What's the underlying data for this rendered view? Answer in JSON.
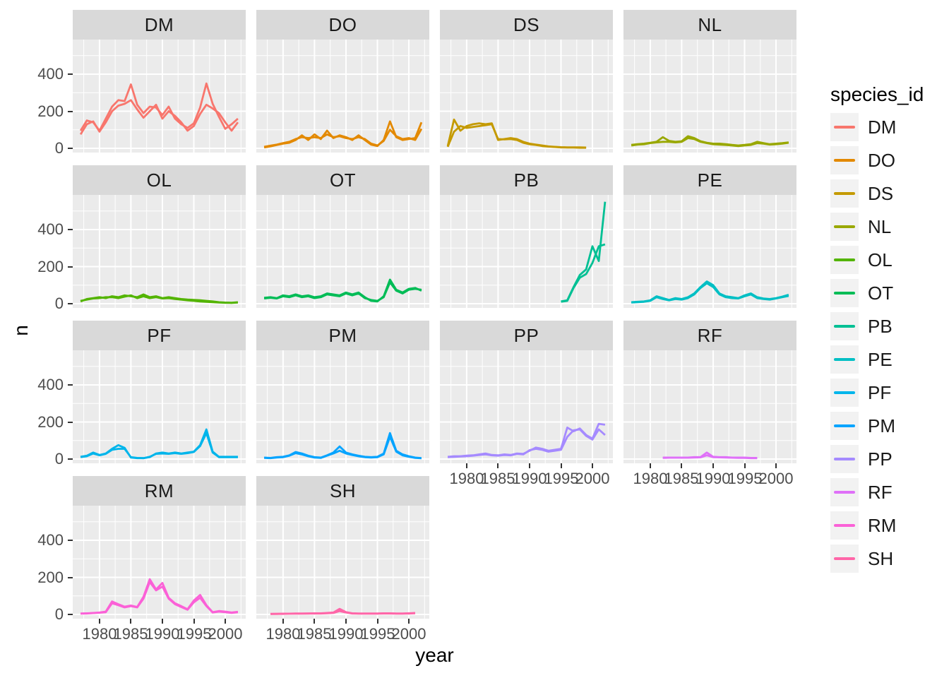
{
  "chart_data": {
    "type": "line",
    "title": "",
    "xlabel": "year",
    "ylabel": "n",
    "legend_title": "species_id",
    "legend_position": "right",
    "grid": true,
    "facet_layout": {
      "ncol": 4,
      "nrow": 4
    },
    "x_domain": [
      1975.75,
      2003.25
    ],
    "y_domain": [
      -23,
      587
    ],
    "x_ticks": {
      "values": [
        1980,
        1985,
        1990,
        1995,
        2000
      ],
      "labels": [
        "1980",
        "1985",
        "1990",
        "1995",
        "2000"
      ]
    },
    "x_minor": [
      1977.5,
      1982.5,
      1987.5,
      1992.5,
      1997.5,
      2002.5
    ],
    "y_ticks": {
      "values": [
        0,
        200,
        400
      ],
      "labels": [
        "0",
        "200",
        "400"
      ]
    },
    "y_minor": [
      100,
      300,
      500
    ],
    "theme": {
      "background": "#FFFFFF",
      "panel_bg": "#EBEBEB",
      "strip_bg": "#D9D9D9",
      "grid_color": "#FFFFFF",
      "axis_text": "#4D4D4D",
      "tick_color": "#333333",
      "strip_text": "#1A1A1A",
      "legend_key_bg": "#F2F2F2"
    },
    "facets": [
      {
        "label": "DM",
        "color": "#F8766D",
        "series": [
          {
            "name": "line1",
            "start_year": 1977,
            "values": [
              95,
              150,
              140,
              95,
              160,
              225,
              260,
              255,
              345,
              235,
              190,
              225,
              220,
              180,
              225,
              160,
              130,
              110,
              135,
              220,
              350,
              240,
              170,
              105,
              130,
              160
            ]
          },
          {
            "name": "line2",
            "start_year": 1977,
            "values": [
              75,
              130,
              145,
              90,
              140,
              200,
              230,
              240,
              260,
              210,
              165,
              200,
              235,
              160,
              200,
              175,
              140,
              95,
              120,
              185,
              235,
              215,
              190,
              140,
              95,
              140
            ]
          }
        ]
      },
      {
        "label": "DO",
        "color": "#E38900",
        "series": [
          {
            "name": "line1",
            "start_year": 1977,
            "values": [
              5,
              10,
              18,
              25,
              30,
              45,
              70,
              45,
              75,
              50,
              95,
              55,
              70,
              60,
              45,
              70,
              45,
              20,
              12,
              45,
              145,
              60,
              45,
              50,
              55,
              140
            ]
          },
          {
            "name": "line2",
            "start_year": 1977,
            "values": [
              8,
              14,
              20,
              28,
              35,
              50,
              60,
              55,
              60,
              55,
              75,
              60,
              65,
              55,
              50,
              60,
              50,
              25,
              15,
              40,
              100,
              65,
              50,
              55,
              45,
              105
            ]
          }
        ]
      },
      {
        "label": "DS",
        "color": "#C49A00",
        "series": [
          {
            "name": "line1",
            "start_year": 1977,
            "values": [
              12,
              155,
              95,
              120,
              130,
              135,
              130,
              135,
              45,
              50,
              55,
              50,
              35,
              25,
              20,
              15,
              10,
              8,
              6,
              5,
              5,
              5,
              4
            ]
          },
          {
            "name": "line2",
            "start_year": 1977,
            "values": [
              8,
              90,
              120,
              110,
              115,
              120,
              125,
              130,
              50,
              48,
              50,
              45,
              30,
              22,
              18,
              12,
              9,
              7,
              5,
              4,
              4,
              3,
              3
            ]
          }
        ]
      },
      {
        "label": "NL",
        "color": "#99A800",
        "series": [
          {
            "name": "line1",
            "start_year": 1977,
            "values": [
              18,
              22,
              25,
              30,
              35,
              60,
              40,
              35,
              38,
              65,
              55,
              38,
              30,
              25,
              25,
              22,
              18,
              15,
              18,
              22,
              35,
              28,
              22,
              25,
              28,
              32
            ]
          },
          {
            "name": "line2",
            "start_year": 1977,
            "values": [
              15,
              20,
              22,
              28,
              32,
              35,
              35,
              32,
              35,
              55,
              50,
              35,
              28,
              22,
              20,
              18,
              15,
              12,
              15,
              18,
              28,
              25,
              20,
              22,
              25,
              30
            ]
          }
        ]
      },
      {
        "label": "OL",
        "color": "#53B400",
        "series": [
          {
            "name": "line1",
            "start_year": 1977,
            "values": [
              12,
              25,
              30,
              35,
              30,
              40,
              35,
              45,
              40,
              35,
              50,
              35,
              40,
              30,
              35,
              30,
              25,
              22,
              20,
              18,
              15,
              12,
              8,
              6,
              5,
              8
            ]
          },
          {
            "name": "line2",
            "start_year": 1977,
            "values": [
              15,
              22,
              28,
              30,
              35,
              35,
              30,
              38,
              45,
              30,
              40,
              30,
              35,
              28,
              30,
              25,
              22,
              18,
              15,
              12,
              10,
              8,
              6,
              5,
              4,
              6
            ]
          }
        ]
      },
      {
        "label": "OT",
        "color": "#00BC56",
        "series": [
          {
            "name": "line1",
            "start_year": 1977,
            "values": [
              32,
              35,
              30,
              45,
              40,
              50,
              40,
              45,
              35,
              40,
              55,
              50,
              45,
              60,
              50,
              60,
              35,
              15,
              12,
              40,
              130,
              75,
              60,
              80,
              85,
              70
            ]
          },
          {
            "name": "line2",
            "start_year": 1977,
            "values": [
              28,
              32,
              28,
              40,
              35,
              45,
              35,
              40,
              30,
              35,
              50,
              45,
              40,
              55,
              45,
              55,
              30,
              20,
              15,
              35,
              115,
              70,
              55,
              75,
              80,
              75
            ]
          }
        ]
      },
      {
        "label": "PB",
        "color": "#00C094",
        "series": [
          {
            "name": "line1",
            "start_year": 1995,
            "values": [
              12,
              18,
              90,
              155,
              185,
              310,
              230,
              550
            ]
          },
          {
            "name": "line2",
            "start_year": 1995,
            "values": [
              10,
              15,
              85,
              140,
              160,
              220,
              310,
              320
            ]
          }
        ]
      },
      {
        "label": "PE",
        "color": "#00BFC4",
        "series": [
          {
            "name": "line1",
            "start_year": 1977,
            "values": [
              8,
              10,
              12,
              18,
              40,
              30,
              20,
              30,
              25,
              35,
              55,
              90,
              120,
              100,
              55,
              40,
              35,
              30,
              45,
              55,
              35,
              28,
              25,
              30,
              38,
              48
            ]
          },
          {
            "name": "line2",
            "start_year": 1977,
            "values": [
              6,
              8,
              10,
              15,
              35,
              25,
              18,
              25,
              22,
              30,
              50,
              85,
              110,
              90,
              50,
              35,
              30,
              28,
              40,
              50,
              30,
              25,
              22,
              28,
              35,
              42
            ]
          }
        ]
      },
      {
        "label": "PF",
        "color": "#00B5EB",
        "series": [
          {
            "name": "line1",
            "start_year": 1977,
            "values": [
              12,
              18,
              35,
              22,
              30,
              55,
              75,
              60,
              8,
              5,
              5,
              10,
              30,
              35,
              30,
              35,
              30,
              35,
              40,
              75,
              160,
              40,
              12,
              12,
              12,
              12
            ]
          },
          {
            "name": "line2",
            "start_year": 1977,
            "values": [
              10,
              15,
              30,
              20,
              28,
              50,
              55,
              55,
              10,
              6,
              5,
              12,
              28,
              30,
              28,
              32,
              28,
              32,
              38,
              70,
              140,
              35,
              10,
              10,
              10,
              10
            ]
          }
        ]
      },
      {
        "label": "PM",
        "color": "#06A4FF",
        "series": [
          {
            "name": "line1",
            "start_year": 1977,
            "values": [
              8,
              6,
              10,
              12,
              20,
              38,
              30,
              18,
              10,
              8,
              20,
              35,
              68,
              35,
              25,
              18,
              12,
              10,
              12,
              30,
              140,
              45,
              25,
              15,
              8,
              5
            ]
          },
          {
            "name": "line2",
            "start_year": 1977,
            "values": [
              6,
              5,
              8,
              10,
              18,
              32,
              25,
              15,
              8,
              6,
              18,
              30,
              45,
              30,
              22,
              15,
              10,
              8,
              10,
              25,
              120,
              40,
              20,
              12,
              6,
              4
            ]
          }
        ]
      },
      {
        "label": "PP",
        "color": "#A58AFF",
        "series": [
          {
            "name": "line1",
            "start_year": 1977,
            "values": [
              12,
              15,
              15,
              18,
              20,
              25,
              30,
              22,
              20,
              25,
              22,
              30,
              28,
              45,
              62,
              55,
              45,
              50,
              55,
              170,
              150,
              165,
              130,
              110,
              190,
              185
            ]
          },
          {
            "name": "line2",
            "start_year": 1977,
            "values": [
              10,
              12,
              14,
              15,
              18,
              22,
              25,
              20,
              18,
              22,
              20,
              28,
              25,
              48,
              55,
              50,
              40,
              45,
              50,
              120,
              155,
              160,
              125,
              105,
              160,
              130
            ]
          }
        ]
      },
      {
        "label": "RF",
        "color": "#DF70F8",
        "series": [
          {
            "name": "line1",
            "start_year": 1982,
            "values": [
              8,
              8,
              8,
              8,
              8,
              10,
              10,
              35,
              12,
              10,
              10,
              8,
              8,
              8,
              6,
              6
            ]
          },
          {
            "name": "line2",
            "start_year": 1982,
            "values": [
              6,
              7,
              7,
              7,
              7,
              8,
              9,
              20,
              10,
              9,
              8,
              7,
              6,
              6,
              5,
              5
            ]
          }
        ]
      },
      {
        "label": "RM",
        "color": "#FB61D7",
        "series": [
          {
            "name": "line1",
            "start_year": 1977,
            "values": [
              5,
              6,
              8,
              10,
              15,
              70,
              55,
              42,
              48,
              40,
              95,
              190,
              135,
              170,
              90,
              60,
              45,
              28,
              75,
              105,
              50,
              12,
              18,
              15,
              10,
              14
            ]
          },
          {
            "name": "line2",
            "start_year": 1977,
            "values": [
              4,
              5,
              7,
              9,
              12,
              60,
              50,
              38,
              45,
              38,
              85,
              175,
              130,
              150,
              85,
              55,
              40,
              25,
              65,
              90,
              45,
              10,
              15,
              12,
              8,
              12
            ]
          }
        ]
      },
      {
        "label": "SH",
        "color": "#FF66A8",
        "series": [
          {
            "name": "line1",
            "start_year": 1978,
            "values": [
              3,
              3,
              4,
              4,
              5,
              5,
              5,
              6,
              6,
              8,
              10,
              30,
              12,
              6,
              5,
              5,
              5,
              5,
              6,
              6,
              5,
              5,
              6,
              8
            ]
          },
          {
            "name": "line2",
            "start_year": 1978,
            "values": [
              2,
              3,
              3,
              4,
              4,
              4,
              5,
              5,
              5,
              6,
              8,
              18,
              10,
              5,
              4,
              4,
              4,
              4,
              5,
              5,
              4,
              4,
              5,
              6
            ]
          }
        ]
      }
    ]
  }
}
